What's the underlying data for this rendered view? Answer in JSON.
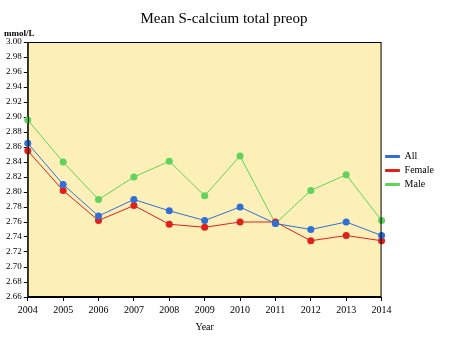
{
  "chart_data": {
    "type": "line",
    "title": "Mean S-calcium total preop",
    "y_label": "mmol/L",
    "x_label": "Year",
    "categories": [
      "2004",
      "2005",
      "2006",
      "2007",
      "2008",
      "2009",
      "2010",
      "2011",
      "2012",
      "2013",
      "2014"
    ],
    "series": [
      {
        "name": "All",
        "color": "#2f6fd6",
        "marker": "circle",
        "values": [
          2.865,
          2.81,
          2.768,
          2.79,
          2.775,
          2.762,
          2.78,
          2.758,
          2.75,
          2.76,
          2.742
        ]
      },
      {
        "name": "Female",
        "color": "#e0201b",
        "marker": "circle",
        "values": [
          2.855,
          2.802,
          2.762,
          2.782,
          2.757,
          2.753,
          2.76,
          2.76,
          2.735,
          2.742,
          2.735
        ]
      },
      {
        "name": "Male",
        "color": "#5fd35a",
        "marker": "circle",
        "values": [
          2.896,
          2.84,
          2.79,
          2.82,
          2.841,
          2.795,
          2.848,
          2.758,
          2.802,
          2.823,
          2.762
        ]
      }
    ],
    "ylim": [
      2.66,
      3.0
    ],
    "yticks": [
      {
        "value": 2.66,
        "label": "2.66"
      },
      {
        "value": 2.68,
        "label": "2.68"
      },
      {
        "value": 2.7,
        "label": "2.70"
      },
      {
        "value": 2.72,
        "label": "2.72"
      },
      {
        "value": 2.74,
        "label": "2.74"
      },
      {
        "value": 2.76,
        "label": "2.76"
      },
      {
        "value": 2.78,
        "label": "2.78"
      },
      {
        "value": 2.8,
        "label": "2.80"
      },
      {
        "value": 2.82,
        "label": "2.82"
      },
      {
        "value": 2.84,
        "label": "2.84"
      },
      {
        "value": 2.86,
        "label": "2.86"
      },
      {
        "value": 2.88,
        "label": "2.88"
      },
      {
        "value": 2.9,
        "label": "2.90"
      },
      {
        "value": 2.92,
        "label": "2.92"
      },
      {
        "value": 2.94,
        "label": "2.94"
      },
      {
        "value": 2.96,
        "label": "2.96"
      },
      {
        "value": 2.98,
        "label": "2.98"
      },
      {
        "value": 3.0,
        "label": "3.00"
      }
    ],
    "grid": false,
    "legend": "right"
  }
}
